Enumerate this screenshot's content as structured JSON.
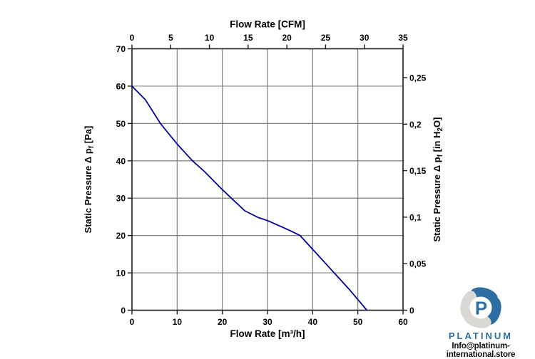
{
  "watermark": {
    "brand": "PLATINUM",
    "email": "Info@platinum-international.store",
    "brand_color": "#2e6da4",
    "petal_blue": "#2e6da4",
    "petal_gray": "#d9d8d4"
  },
  "chart_data": {
    "type": "line",
    "description": "Fan performance curve: static pressure vs flow rate",
    "colors": {
      "curve": "#0000a0",
      "grid": "#7f7f7f",
      "axis": "#1c1c1c",
      "text": "#000000",
      "background": "#ffffff"
    },
    "top_axis": {
      "label": "Flow Rate [CFM]",
      "ticks": [
        0,
        5,
        10,
        15,
        20,
        25,
        30,
        35
      ],
      "range": [
        0,
        35
      ]
    },
    "bottom_axis": {
      "label": "Flow Rate [m³/h]",
      "ticks": [
        0,
        10,
        20,
        30,
        40,
        50,
        60
      ],
      "range": [
        0,
        60
      ]
    },
    "left_axis": {
      "label": "Static Pressure Δ pf [Pa]",
      "label_parts": [
        {
          "t": "Static Pressure Δ p"
        },
        {
          "t": "f",
          "sub": true
        },
        {
          "t": " [Pa]"
        }
      ],
      "ticks": [
        0,
        10,
        20,
        30,
        40,
        50,
        60,
        70
      ],
      "range": [
        0,
        70
      ]
    },
    "right_axis": {
      "label": "Static Pressure Δ pf [in H₂O]",
      "label_parts": [
        {
          "t": "Static Pressure Δ p"
        },
        {
          "t": "f",
          "sub": true
        },
        {
          "t": " [in H"
        },
        {
          "t": "2",
          "sub": true
        },
        {
          "t": "O]"
        }
      ],
      "tick_labels": [
        "0",
        "0,05",
        "0,1",
        "0,15",
        "0,2",
        "0,25"
      ],
      "tick_positions_pa": [
        0,
        12.45,
        24.91,
        37.36,
        49.82,
        62.27
      ],
      "range_pa": [
        0,
        70
      ]
    },
    "grid": {
      "x_every_m3h": 10,
      "y_every_pa": 10
    },
    "series": [
      {
        "name": "fan-curve",
        "color": "#0000a0",
        "points_m3h_pa": [
          [
            0,
            60
          ],
          [
            3,
            56.3
          ],
          [
            6.3,
            50
          ],
          [
            10,
            44.5
          ],
          [
            13.4,
            40
          ],
          [
            16,
            37.2
          ],
          [
            20,
            32.3
          ],
          [
            22,
            30
          ],
          [
            25,
            26.6
          ],
          [
            28,
            24.8
          ],
          [
            30,
            24
          ],
          [
            33,
            22.4
          ],
          [
            35,
            21.3
          ],
          [
            37.2,
            20
          ],
          [
            40,
            16.3
          ],
          [
            44,
            11
          ],
          [
            48,
            5.7
          ],
          [
            52,
            0
          ]
        ]
      }
    ]
  }
}
